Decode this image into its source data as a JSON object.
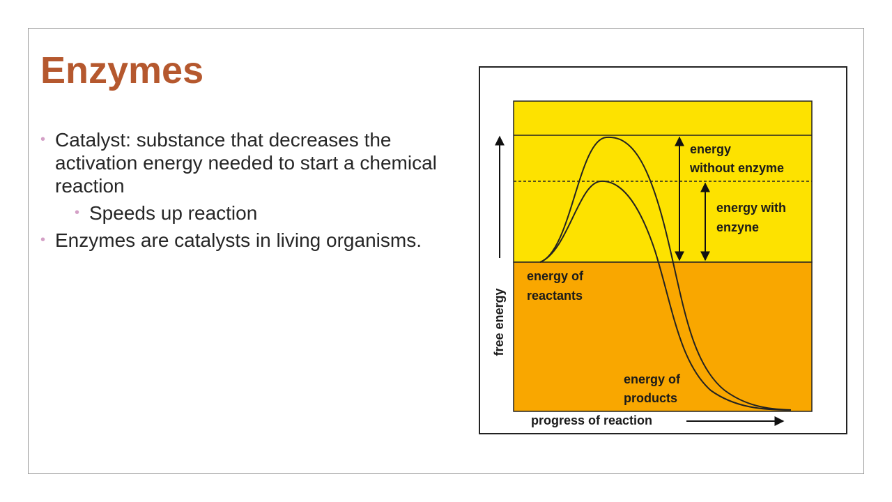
{
  "title": "Enzymes",
  "bullets": [
    {
      "text": "Catalyst: substance that decreases the activation energy needed to start a chemical reaction",
      "sub": [
        "Speeds up reaction"
      ]
    },
    {
      "text": "Enzymes are catalysts in living organisms."
    }
  ],
  "diagram": {
    "without_enzyme": [
      "energy",
      "without enzyme"
    ],
    "with_enzyme": [
      "energy with",
      "enzyne"
    ],
    "reactants": [
      "energy of",
      "reactants"
    ],
    "products": [
      "energy of",
      "products"
    ],
    "y_axis": "free energy",
    "x_axis": "progress of reaction"
  }
}
